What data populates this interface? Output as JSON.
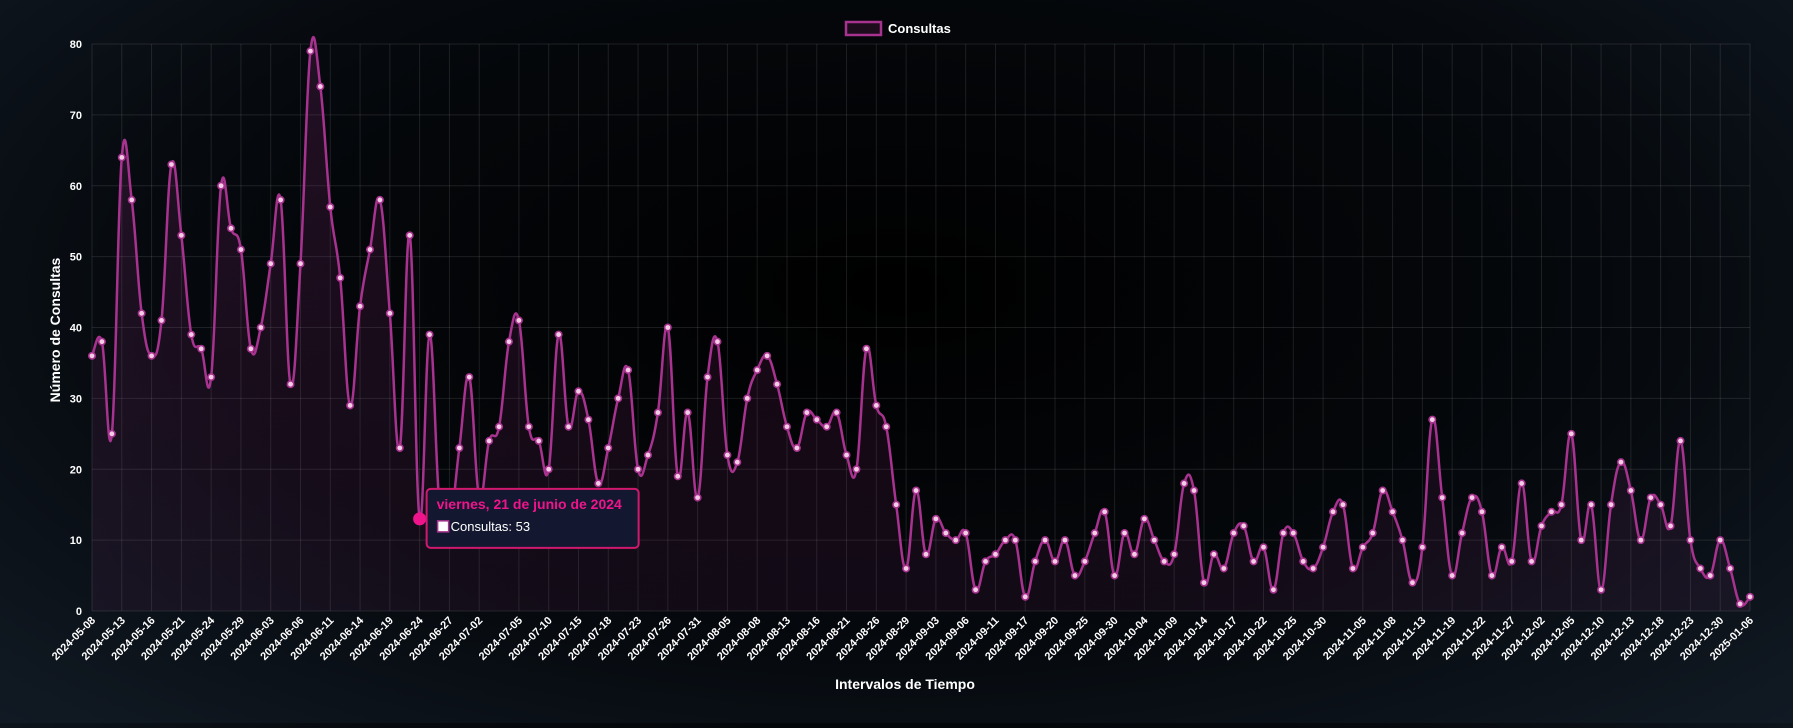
{
  "colors": {
    "line": "#a8328f",
    "point_fill": "#f3cde6",
    "highlight": "#f0148c",
    "tooltip_bg": "#131830",
    "tooltip_border": "#d0186e",
    "tooltip_title": "#f0148c"
  },
  "tooltip": {
    "title": "viernes, 21 de junio de 2024",
    "label": "Consultas: 53",
    "index": 33
  },
  "chart_data": {
    "type": "line",
    "xlabel": "Intervalos de Tiempo",
    "ylabel": "Número de Consultas",
    "ylim": [
      0,
      80
    ],
    "yticks": [
      "0",
      "10",
      "20",
      "30",
      "40",
      "50",
      "60",
      "70",
      "80"
    ],
    "x_tick_labels": [
      "2024-05-08",
      "2024-05-13",
      "2024-05-16",
      "2024-05-21",
      "2024-05-24",
      "2024-05-29",
      "2024-06-03",
      "2024-06-06",
      "2024-06-11",
      "2024-06-14",
      "2024-06-19",
      "2024-06-24",
      "2024-06-27",
      "2024-07-02",
      "2024-07-05",
      "2024-07-10",
      "2024-07-15",
      "2024-07-18",
      "2024-07-23",
      "2024-07-26",
      "2024-07-31",
      "2024-08-05",
      "2024-08-08",
      "2024-08-13",
      "2024-08-16",
      "2024-08-21",
      "2024-08-26",
      "2024-08-29",
      "2024-09-03",
      "2024-09-06",
      "2024-09-11",
      "2024-09-17",
      "2024-09-20",
      "2024-09-25",
      "2024-09-30",
      "2024-10-04",
      "2024-10-09",
      "2024-10-14",
      "2024-10-17",
      "2024-10-22",
      "2024-10-25",
      "2024-10-30",
      "2024-11-05",
      "2024-11-08",
      "2024-11-13",
      "2024-11-19",
      "2024-11-22",
      "2024-11-27",
      "2024-12-02",
      "2024-12-05",
      "2024-12-10",
      "2024-12-13",
      "2024-12-18",
      "2024-12-23",
      "2024-12-30",
      "2025-01-06"
    ],
    "legend": {
      "position": "top",
      "entries": [
        "Consultas"
      ]
    },
    "grid": true,
    "series": [
      {
        "name": "Consultas",
        "values": [
          36,
          38,
          25,
          64,
          58,
          42,
          36,
          41,
          63,
          53,
          39,
          37,
          33,
          60,
          54,
          51,
          37,
          40,
          49,
          58,
          32,
          49,
          79,
          74,
          57,
          47,
          29,
          43,
          51,
          58,
          42,
          23,
          53,
          13,
          39,
          15,
          12,
          23,
          33,
          16,
          24,
          26,
          38,
          41,
          26,
          24,
          20,
          39,
          26,
          31,
          27,
          18,
          23,
          30,
          34,
          20,
          22,
          28,
          40,
          19,
          28,
          16,
          33,
          38,
          22,
          21,
          30,
          34,
          36,
          32,
          26,
          23,
          28,
          27,
          26,
          28,
          22,
          20,
          37,
          29,
          26,
          15,
          6,
          17,
          8,
          13,
          11,
          10,
          11,
          3,
          7,
          8,
          10,
          10,
          2,
          7,
          10,
          7,
          10,
          5,
          7,
          11,
          14,
          5,
          11,
          8,
          13,
          10,
          7,
          8,
          18,
          17,
          4,
          8,
          6,
          11,
          12,
          7,
          9,
          3,
          11,
          11,
          7,
          6,
          9,
          14,
          15,
          6,
          9,
          11,
          17,
          14,
          10,
          4,
          9,
          27,
          16,
          5,
          11,
          16,
          14,
          5,
          9,
          7,
          18,
          7,
          12,
          14,
          15,
          25,
          10,
          15,
          3,
          15,
          21,
          17,
          10,
          16,
          15,
          12,
          24,
          10,
          6,
          5,
          10,
          6,
          1,
          2
        ]
      }
    ]
  }
}
